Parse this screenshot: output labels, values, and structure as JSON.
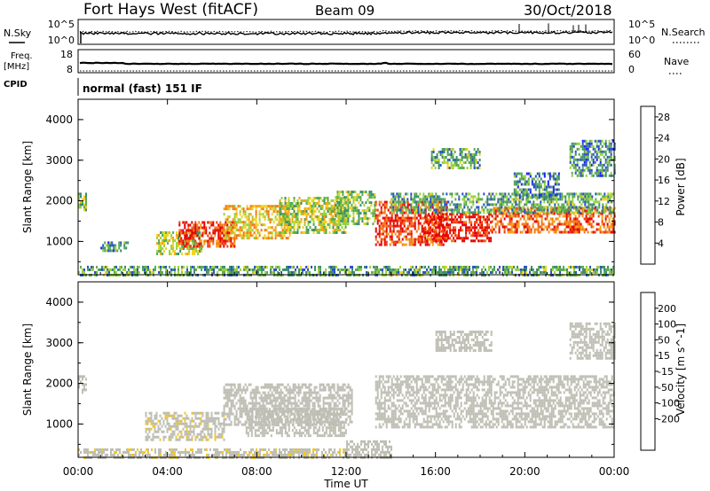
{
  "header": {
    "title": "Fort Hays West (fitACF)",
    "beam": "Beam 09",
    "date": "30/Oct/2018"
  },
  "top_panels": {
    "nsky_label": "N.Sky",
    "nsky_ticks": [
      "10^5",
      "10^0"
    ],
    "nsearch_label": "N.Search",
    "nsearch_ticks": [
      "10^5",
      "10^0"
    ],
    "freq_label": "Freq.",
    "freq_unit": "[MHz]",
    "freq_ticks": [
      "18",
      "8"
    ],
    "nave_label": "Nave",
    "nave_ticks": [
      "60",
      "0"
    ],
    "cpid_label": "CPID",
    "cpid_text": "normal (fast) 151 IF"
  },
  "colors": {
    "power_scale": [
      "#1e1eff",
      "#2850c8",
      "#3c8c6e",
      "#5aaa50",
      "#96d23c",
      "#f0d21e",
      "#f5a014",
      "#f07814",
      "#f03c14",
      "#e60000"
    ],
    "velocity_scale": [
      "#e60000",
      "#f05014",
      "#f5a014",
      "#f0c828",
      "#bebeb4",
      "#bebeb4",
      "#78d23c",
      "#3c9650",
      "#2864b4",
      "#1e1eb4"
    ]
  },
  "chart_data": [
    {
      "type": "heatmap",
      "name": "power",
      "x_label": "Time UT",
      "y_label": "Slant Range [km]",
      "colorbar_label": "Power [dB]",
      "colorbar_ticks": [
        "28",
        "24",
        "20",
        "16",
        "12",
        "8",
        "4"
      ],
      "colorbar_range": [
        0,
        30
      ],
      "x_ticks": [
        "00:00",
        "04:00",
        "08:00",
        "12:00",
        "16:00",
        "20:00",
        "00:00"
      ],
      "y_ticks": [
        "4000",
        "3000",
        "2000",
        "1000"
      ],
      "x_range_hours": [
        0,
        24
      ],
      "y_range_km": [
        180,
        4500
      ],
      "regions": [
        {
          "t0": 0.0,
          "t1": 0.35,
          "r0": 1750,
          "r1": 2200,
          "power": 12
        },
        {
          "t0": 1.0,
          "t1": 2.2,
          "r0": 800,
          "r1": 1000,
          "power": 8
        },
        {
          "t0": 3.5,
          "t1": 5.5,
          "r0": 700,
          "r1": 1250,
          "power": 14
        },
        {
          "t0": 4.5,
          "t1": 7.0,
          "r0": 900,
          "r1": 1500,
          "power": 26
        },
        {
          "t0": 6.5,
          "t1": 9.5,
          "r0": 1100,
          "r1": 1900,
          "power": 18
        },
        {
          "t0": 9.0,
          "t1": 12.0,
          "r0": 1200,
          "r1": 2100,
          "power": 14
        },
        {
          "t0": 11.5,
          "t1": 13.3,
          "r0": 1400,
          "r1": 2250,
          "power": 12
        },
        {
          "t0": 13.3,
          "t1": 16.5,
          "r0": 900,
          "r1": 2000,
          "power": 26
        },
        {
          "t0": 15.5,
          "t1": 18.5,
          "r0": 1000,
          "r1": 1700,
          "power": 28
        },
        {
          "t0": 18.5,
          "t1": 24.0,
          "r0": 1250,
          "r1": 1850,
          "power": 24
        },
        {
          "t0": 14.0,
          "t1": 24.0,
          "r0": 1700,
          "r1": 2200,
          "power": 10
        },
        {
          "t0": 15.8,
          "t1": 18.0,
          "r0": 2800,
          "r1": 3300,
          "power": 10
        },
        {
          "t0": 19.5,
          "t1": 21.5,
          "r0": 2100,
          "r1": 2700,
          "power": 8
        },
        {
          "t0": 22.0,
          "t1": 24.0,
          "r0": 2600,
          "r1": 3500,
          "power": 8
        },
        {
          "t0": 0.0,
          "t1": 24.0,
          "r0": 180,
          "r1": 400,
          "power": 10
        }
      ]
    },
    {
      "type": "heatmap",
      "name": "velocity",
      "x_label": "Time UT",
      "y_label": "Slant Range [km]",
      "colorbar_label": "Velocity [m s^-1]",
      "colorbar_ticks": [
        "200",
        "100",
        "50",
        "15",
        "-15",
        "-50",
        "-100",
        "-200"
      ],
      "colorbar_range": [
        -250,
        250
      ],
      "x_ticks": [
        "00:00",
        "04:00",
        "08:00",
        "12:00",
        "16:00",
        "20:00",
        "00:00"
      ],
      "y_ticks": [
        "4000",
        "3000",
        "2000",
        "1000"
      ],
      "x_range_hours": [
        0,
        24
      ],
      "y_range_km": [
        180,
        4500
      ],
      "regions": [
        {
          "t0": 0.0,
          "t1": 0.35,
          "r0": 1750,
          "r1": 2200,
          "velocity": 0
        },
        {
          "t0": 3.0,
          "t1": 6.5,
          "r0": 600,
          "r1": 1300,
          "velocity": -40
        },
        {
          "t0": 6.5,
          "t1": 12.3,
          "r0": 1000,
          "r1": 2000,
          "velocity": -30
        },
        {
          "t0": 7.5,
          "t1": 12.0,
          "r0": 700,
          "r1": 1400,
          "velocity": 0
        },
        {
          "t0": 13.3,
          "t1": 24.0,
          "r0": 900,
          "r1": 2200,
          "velocity": 0
        },
        {
          "t0": 16.0,
          "t1": 18.5,
          "r0": 2800,
          "r1": 3300,
          "velocity": 0
        },
        {
          "t0": 22.0,
          "t1": 24.0,
          "r0": 2600,
          "r1": 3500,
          "velocity": 0
        },
        {
          "t0": 0.0,
          "t1": 12.0,
          "r0": 180,
          "r1": 400,
          "velocity": -40
        },
        {
          "t0": 12.0,
          "t1": 14.0,
          "r0": 180,
          "r1": 600,
          "velocity": 30
        }
      ]
    }
  ]
}
